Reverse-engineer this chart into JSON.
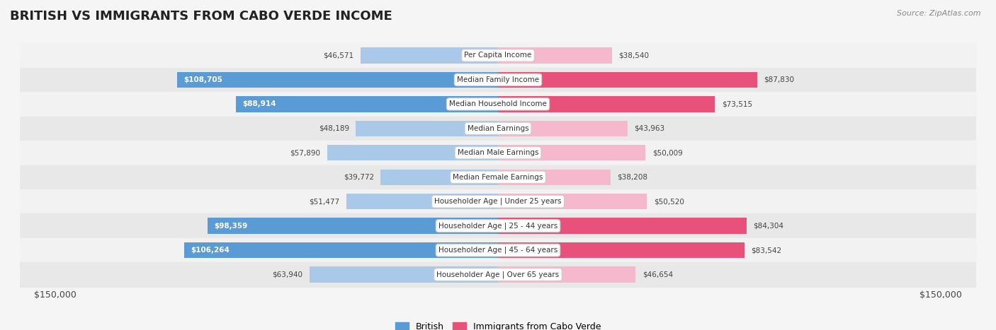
{
  "title": "BRITISH VS IMMIGRANTS FROM CABO VERDE INCOME",
  "source": "Source: ZipAtlas.com",
  "categories": [
    "Per Capita Income",
    "Median Family Income",
    "Median Household Income",
    "Median Earnings",
    "Median Male Earnings",
    "Median Female Earnings",
    "Householder Age | Under 25 years",
    "Householder Age | 25 - 44 years",
    "Householder Age | 45 - 64 years",
    "Householder Age | Over 65 years"
  ],
  "british_values": [
    46571,
    108705,
    88914,
    48189,
    57890,
    39772,
    51477,
    98359,
    106264,
    63940
  ],
  "cabo_verde_values": [
    38540,
    87830,
    73515,
    43963,
    50009,
    38208,
    50520,
    84304,
    83542,
    46654
  ],
  "british_labels": [
    "$46,571",
    "$108,705",
    "$88,914",
    "$48,189",
    "$57,890",
    "$39,772",
    "$51,477",
    "$98,359",
    "$106,264",
    "$63,940"
  ],
  "cabo_verde_labels": [
    "$38,540",
    "$87,830",
    "$73,515",
    "$43,963",
    "$50,009",
    "$38,208",
    "$50,520",
    "$84,304",
    "$83,542",
    "$46,654"
  ],
  "max_value": 150000,
  "british_color_light": "#aac8e8",
  "british_color_dark": "#5b9bd5",
  "cabo_verde_color_light": "#f5b8cc",
  "cabo_verde_color_dark": "#e8527a",
  "label_inside_threshold": 65000,
  "row_colors": [
    "#f2f2f2",
    "#e8e8e8"
  ],
  "background_color": "#f5f5f5",
  "xlabel_left": "$150,000",
  "xlabel_right": "$150,000",
  "legend_british": "British",
  "legend_cabo": "Immigrants from Cabo Verde"
}
